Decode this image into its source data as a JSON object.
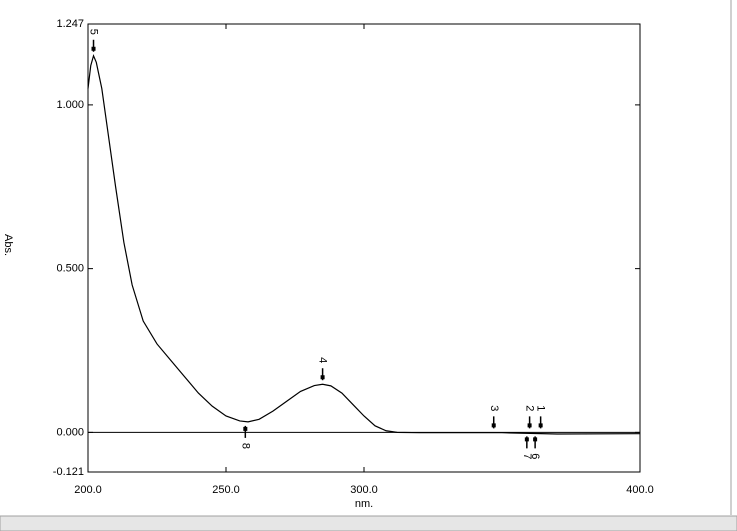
{
  "chart_data": {
    "type": "line",
    "xlabel": "nm.",
    "ylabel": "Abs.",
    "xlim": [
      200,
      400
    ],
    "ylim": [
      -0.121,
      1.247
    ],
    "xticks": [
      {
        "value": 200,
        "label": "200.0"
      },
      {
        "value": 250,
        "label": "250.0"
      },
      {
        "value": 300,
        "label": "300.0"
      },
      {
        "value": 400,
        "label": "400.0"
      }
    ],
    "yticks": [
      {
        "value": -0.121,
        "label": "-0.121"
      },
      {
        "value": 0,
        "label": "0.000"
      },
      {
        "value": 0.5,
        "label": "0.500"
      },
      {
        "value": 1,
        "label": "1.000"
      },
      {
        "value": 1.247,
        "label": "1.247"
      }
    ],
    "x": [
      200,
      201,
      202,
      203,
      205,
      207,
      210,
      213,
      216,
      220,
      225,
      230,
      235,
      240,
      245,
      250,
      255,
      258,
      262,
      267,
      272,
      277,
      282,
      285,
      288,
      292,
      296,
      300,
      304,
      308,
      312,
      320,
      350,
      370,
      400
    ],
    "values": [
      1.05,
      1.12,
      1.15,
      1.13,
      1.05,
      0.93,
      0.75,
      0.58,
      0.45,
      0.34,
      0.27,
      0.22,
      0.17,
      0.12,
      0.08,
      0.05,
      0.035,
      0.032,
      0.04,
      0.065,
      0.095,
      0.125,
      0.143,
      0.147,
      0.142,
      0.12,
      0.085,
      0.05,
      0.02,
      0.005,
      0,
      -0.001,
      -0.001,
      -0.005,
      -0.004
    ],
    "color": "#000000",
    "peaks": [
      {
        "label": "1",
        "x": 364,
        "y": 0,
        "side": "up"
      },
      {
        "label": "2",
        "x": 360,
        "y": 0,
        "side": "up"
      },
      {
        "label": "3",
        "x": 347,
        "y": 0,
        "side": "up"
      },
      {
        "label": "4",
        "x": 285,
        "y": 0.147,
        "side": "up"
      },
      {
        "label": "5",
        "x": 202,
        "y": 1.15,
        "side": "up"
      },
      {
        "label": "6",
        "x": 362,
        "y": 0,
        "side": "down"
      },
      {
        "label": "7",
        "x": 359,
        "y": 0,
        "side": "down"
      },
      {
        "label": "8",
        "x": 257,
        "y": 0.032,
        "side": "down"
      }
    ]
  }
}
